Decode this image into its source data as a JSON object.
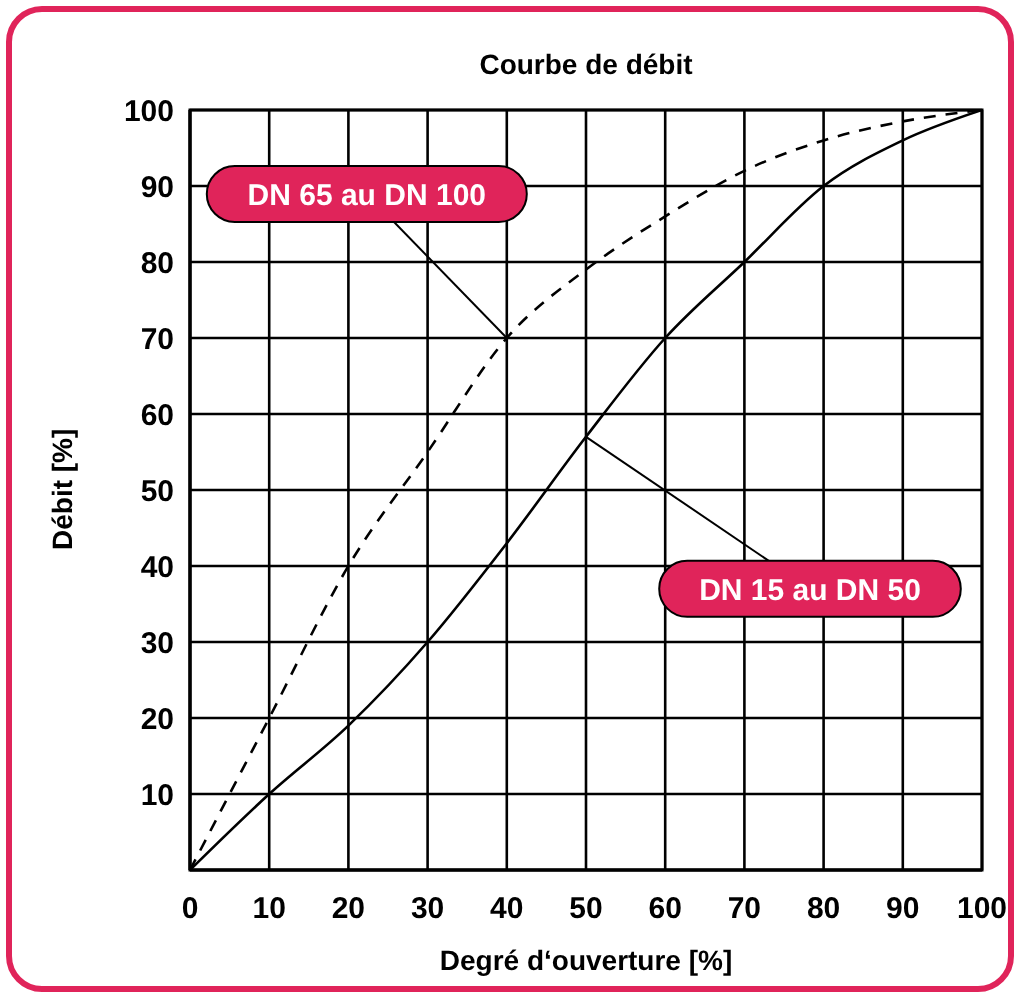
{
  "chart_data": {
    "type": "line",
    "title": "Courbe de débit",
    "xlabel": "Degré d‘ouverture [%]",
    "ylabel": "Débit [%]",
    "x": [
      0,
      10,
      20,
      30,
      40,
      50,
      60,
      70,
      80,
      90,
      100
    ],
    "series": [
      {
        "name": "DN 65 au DN 100",
        "color": "#000000",
        "line_style": "dashed",
        "values": [
          0,
          20,
          40,
          55,
          70,
          79,
          86,
          92,
          96,
          98.5,
          100
        ]
      },
      {
        "name": "DN 15 au DN 50",
        "color": "#000000",
        "line_style": "solid",
        "values": [
          0,
          10,
          19,
          30,
          43,
          57,
          70,
          80,
          90,
          96,
          100
        ]
      }
    ],
    "xlim": [
      0,
      100
    ],
    "ylim": [
      0,
      100
    ],
    "xticks": [
      {
        "value": 0,
        "label": "0"
      },
      10,
      20,
      30,
      40,
      50,
      60,
      70,
      80,
      90,
      100
    ],
    "yticks": [
      {
        "value": 0,
        "label": null
      },
      10,
      20,
      30,
      40,
      50,
      60,
      70,
      80,
      90,
      100
    ],
    "grid": true,
    "marker": "none"
  }
}
